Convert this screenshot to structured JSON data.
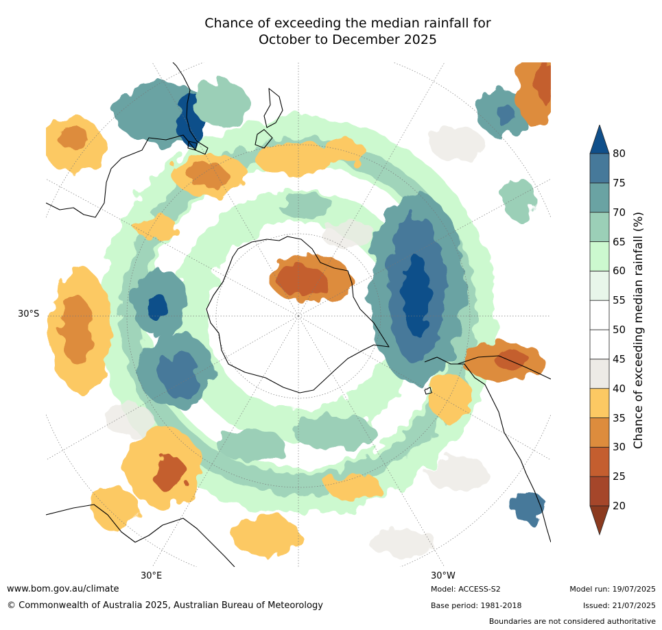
{
  "title_line1": "Chance of exceeding the median rainfall for",
  "title_line2": "October to December 2025",
  "map": {
    "projection": "south-polar-stereographic",
    "lat_label": "30°S",
    "lon_labels": [
      "30°E",
      "30°W"
    ],
    "land_features": [
      "Australia",
      "New Zealand",
      "Antarctica",
      "South America",
      "Southern Africa"
    ]
  },
  "colorbar": {
    "title": "Chance of exceeding median rainfall (%)",
    "ticks": [
      "20",
      "25",
      "30",
      "35",
      "40",
      "45",
      "50",
      "55",
      "60",
      "65",
      "70",
      "75",
      "80"
    ],
    "colors": [
      "#a5462a",
      "#c45e2f",
      "#dd8c3d",
      "#fcc963",
      "#edebe6",
      "#ffffff",
      "#ffffff",
      "#e8f6ea",
      "#ccf9cf",
      "#9bcfb7",
      "#6aa3a3",
      "#46799a"
    ],
    "under_color": "#8b3a1f",
    "over_color": "#104f8a"
  },
  "footer": {
    "website": "www.bom.gov.au/climate",
    "copyright": "© Commonwealth of Australia 2025, Australian Bureau of Meteorology",
    "model": "Model: ACCESS-S2",
    "base_period": "Base period: 1981-2018",
    "model_run": "Model run: 19/07/2025",
    "issued": "Issued: 21/07/2025",
    "disclaimer": "Boundaries are not considered authoritative"
  }
}
